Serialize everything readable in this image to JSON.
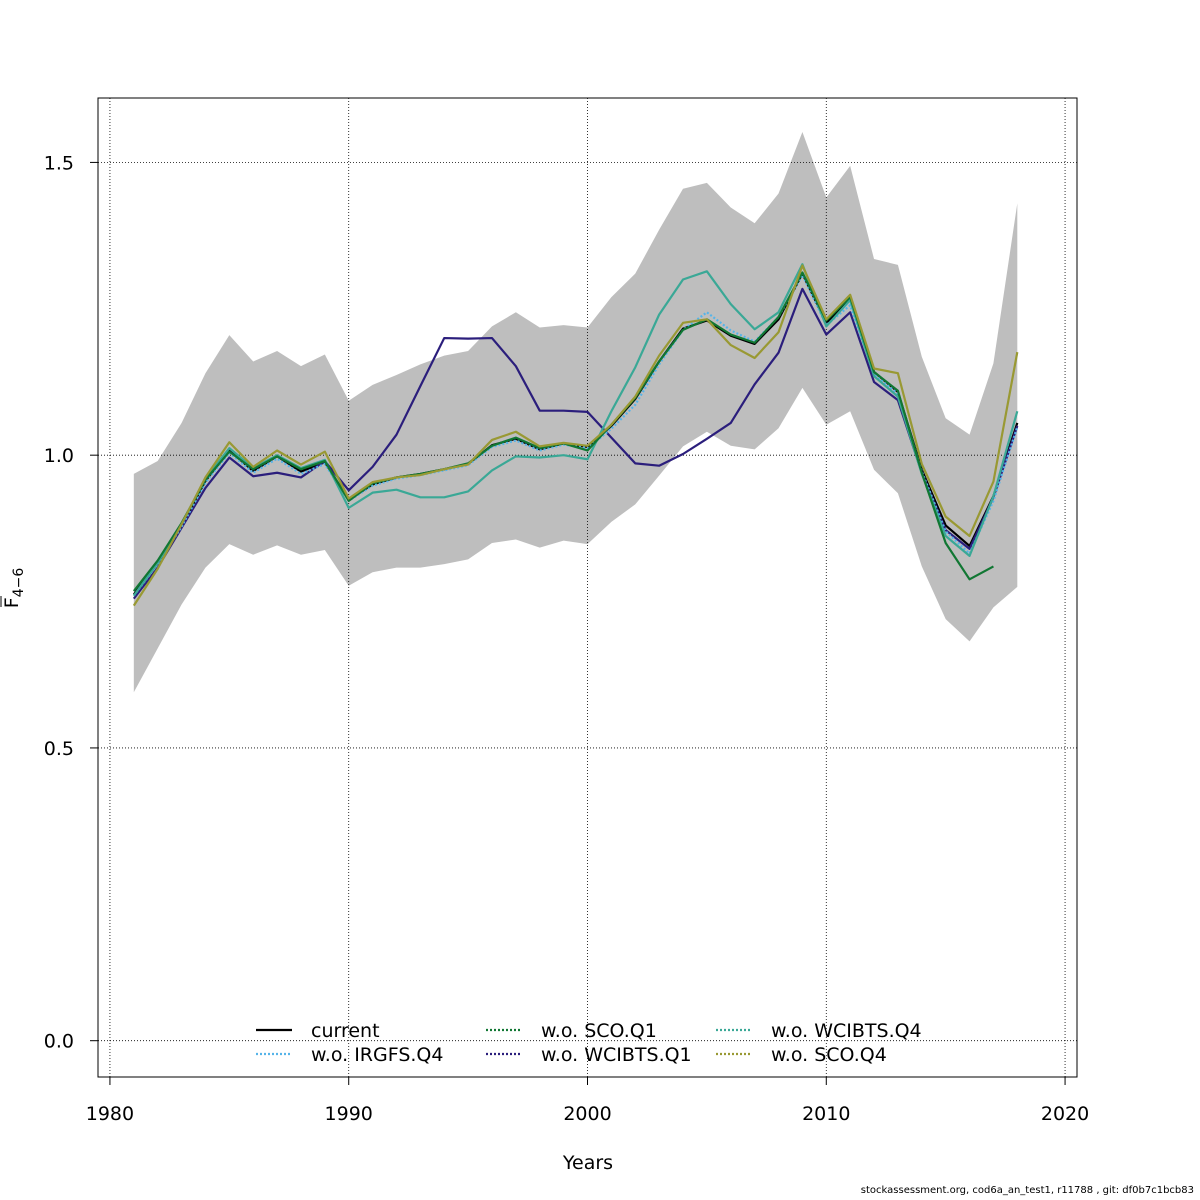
{
  "chart_data": {
    "type": "line",
    "title": "",
    "xlabel": "Years",
    "ylabel": "F̄ 4−6",
    "ylabel_main": "F",
    "ylabel_sub": "4−6",
    "xlim": [
      1979.5,
      2020.5
    ],
    "ylim": [
      -0.062,
      1.61
    ],
    "xticks": [
      1980,
      1990,
      2000,
      2010,
      2020
    ],
    "xtick_labels": [
      "1980",
      "1990",
      "2000",
      "2010",
      "2020"
    ],
    "yticks": [
      0,
      0.5,
      1.0,
      1.5
    ],
    "ytick_labels": [
      "0.0",
      "0.5",
      "1.0",
      "1.5"
    ],
    "grid": true,
    "legend_position": "bottom",
    "band": {
      "color": "#bebebe",
      "x": [
        1981,
        1982,
        1983,
        1984,
        1985,
        1986,
        1987,
        1988,
        1989,
        1990,
        1991,
        1992,
        1993,
        1994,
        1995,
        1996,
        1997,
        1998,
        1999,
        2000,
        2001,
        2002,
        2003,
        2004,
        2005,
        2006,
        2007,
        2008,
        2009,
        2010,
        2011,
        2012,
        2013,
        2014,
        2015,
        2016,
        2017,
        2018
      ],
      "upper": [
        0.968,
        0.99,
        1.055,
        1.14,
        1.205,
        1.16,
        1.178,
        1.152,
        1.172,
        1.093,
        1.12,
        1.137,
        1.155,
        1.17,
        1.178,
        1.22,
        1.244,
        1.218,
        1.222,
        1.218,
        1.27,
        1.31,
        1.385,
        1.455,
        1.465,
        1.423,
        1.396,
        1.447,
        1.552,
        1.44,
        1.494,
        1.335,
        1.325,
        1.168,
        1.063,
        1.035,
        1.157,
        1.43
      ],
      "lower": [
        0.595,
        0.67,
        0.745,
        0.808,
        0.848,
        0.83,
        0.846,
        0.83,
        0.838,
        0.777,
        0.8,
        0.808,
        0.808,
        0.814,
        0.822,
        0.85,
        0.856,
        0.842,
        0.854,
        0.848,
        0.886,
        0.916,
        0.965,
        1.015,
        1.04,
        1.016,
        1.01,
        1.046,
        1.115,
        1.052,
        1.075,
        0.975,
        0.935,
        0.81,
        0.72,
        0.682,
        0.74,
        0.775
      ]
    },
    "series": [
      {
        "name": "current",
        "color": "#000000",
        "dash": "solid",
        "x": [
          1981,
          1982,
          1983,
          1984,
          1985,
          1986,
          1987,
          1988,
          1989,
          1990,
          1991,
          1992,
          1993,
          1994,
          1995,
          1996,
          1997,
          1998,
          1999,
          2000,
          2001,
          2002,
          2003,
          2004,
          2005,
          2006,
          2007,
          2008,
          2009,
          2010,
          2011,
          2012,
          2013,
          2014,
          2015,
          2016,
          2017,
          2018
        ],
        "values": [
          0.762,
          0.816,
          0.88,
          0.956,
          1.008,
          0.973,
          0.998,
          0.972,
          0.988,
          0.924,
          0.95,
          0.962,
          0.968,
          0.976,
          0.985,
          1.017,
          1.028,
          1.01,
          1.02,
          1.014,
          1.05,
          1.096,
          1.16,
          1.216,
          1.23,
          1.204,
          1.19,
          1.232,
          1.31,
          1.226,
          1.266,
          1.142,
          1.108,
          0.975,
          0.88,
          0.845,
          0.93,
          1.055
        ]
      },
      {
        "name": "w.o. WCIBTS.Q1",
        "color": "#2b1e7c",
        "dash": "solid",
        "x": [
          1981,
          1982,
          1983,
          1984,
          1985,
          1986,
          1987,
          1988,
          1989,
          1990,
          1991,
          1992,
          1993,
          1994,
          1995,
          1996,
          1997,
          1998,
          1999,
          2000,
          2001,
          2002,
          2003,
          2004,
          2005,
          2006,
          2007,
          2008,
          2009,
          2010,
          2011,
          2012,
          2013,
          2014,
          2015,
          2016,
          2017,
          2018
        ],
        "values": [
          0.755,
          0.808,
          0.876,
          0.944,
          0.996,
          0.964,
          0.97,
          0.962,
          0.99,
          0.94,
          0.98,
          1.035,
          1.118,
          1.2,
          1.199,
          1.2,
          1.152,
          1.076,
          1.076,
          1.074,
          1.03,
          0.986,
          0.982,
          1.002,
          1.028,
          1.055,
          1.121,
          1.175,
          1.284,
          1.206,
          1.244,
          1.125,
          1.094,
          0.97,
          0.872,
          0.84,
          0.928,
          1.05
        ]
      },
      {
        "name": "w.o. IRGFS.Q4",
        "color": "#56b4e9",
        "dash": "dotted",
        "x": [
          1981,
          1982,
          1983,
          1984,
          1985,
          1986,
          1987,
          1988,
          1989,
          1990,
          1991,
          1992,
          1993,
          1994,
          1995,
          1996,
          1997,
          1998,
          1999,
          2000,
          2001,
          2002,
          2003,
          2004,
          2005,
          2006,
          2007,
          2008,
          2009,
          2010,
          2011,
          2012,
          2013,
          2014,
          2015,
          2016,
          2017,
          2018
        ],
        "values": [
          0.76,
          0.814,
          0.878,
          0.953,
          1.004,
          0.97,
          0.994,
          0.968,
          0.985,
          0.922,
          0.948,
          0.96,
          0.966,
          0.974,
          0.983,
          1.014,
          1.025,
          1.008,
          1.018,
          1.012,
          1.045,
          1.086,
          1.155,
          1.214,
          1.244,
          1.213,
          1.194,
          1.236,
          1.308,
          1.222,
          1.256,
          1.138,
          1.105,
          0.972,
          0.87,
          0.832,
          0.922,
          1.048
        ]
      },
      {
        "name": "w.o. WCIBTS.Q4",
        "color": "#3aa896",
        "dash": "solid",
        "x": [
          1981,
          1982,
          1983,
          1984,
          1985,
          1986,
          1987,
          1988,
          1989,
          1990,
          1991,
          1992,
          1993,
          1994,
          1995,
          1996,
          1997,
          1998,
          1999,
          2000,
          2001,
          2002,
          2003,
          2004,
          2005,
          2006,
          2007,
          2008,
          2009,
          2010,
          2011,
          2012,
          2013,
          2014,
          2015,
          2016,
          2017,
          2018
        ],
        "values": [
          0.76,
          0.816,
          0.882,
          0.96,
          1.012,
          0.978,
          1.0,
          0.978,
          0.992,
          0.91,
          0.936,
          0.941,
          0.928,
          0.928,
          0.938,
          0.974,
          0.998,
          0.996,
          1.0,
          0.993,
          1.075,
          1.15,
          1.24,
          1.3,
          1.314,
          1.258,
          1.215,
          1.244,
          1.326,
          1.22,
          1.265,
          1.135,
          1.1,
          0.968,
          0.862,
          0.828,
          0.93,
          1.075
        ]
      },
      {
        "name": "w.o. SCO.Q1",
        "color": "#117733",
        "dash": "solid",
        "x": [
          1981,
          1982,
          1983,
          1984,
          1985,
          1986,
          1987,
          1988,
          1989,
          1990,
          1991,
          1992,
          1993,
          1994,
          1995,
          1996,
          1997,
          1998,
          1999,
          2000,
          2001,
          2002,
          2003,
          2004,
          2005,
          2006,
          2007,
          2008,
          2009,
          2010,
          2011,
          2012,
          2013,
          2014,
          2015,
          2016,
          2017
        ],
        "values": [
          0.768,
          0.82,
          0.884,
          0.958,
          1.006,
          0.976,
          0.998,
          0.976,
          0.99,
          0.922,
          0.952,
          0.962,
          0.968,
          0.976,
          0.986,
          1.016,
          1.03,
          1.012,
          1.02,
          1.008,
          1.052,
          1.098,
          1.16,
          1.214,
          1.232,
          1.206,
          1.192,
          1.236,
          1.312,
          1.23,
          1.27,
          1.142,
          1.11,
          0.97,
          0.85,
          0.788,
          0.81
        ]
      },
      {
        "name": "w.o. SCO.Q4",
        "color": "#999933",
        "dash": "solid",
        "x": [
          1981,
          1982,
          1983,
          1984,
          1985,
          1986,
          1987,
          1988,
          1989,
          1990,
          1991,
          1992,
          1993,
          1994,
          1995,
          1996,
          1997,
          1998,
          1999,
          2000,
          2001,
          2002,
          2003,
          2004,
          2005,
          2006,
          2007,
          2008,
          2009,
          2010,
          2011,
          2012,
          2013,
          2014,
          2015,
          2016,
          2017,
          2018
        ],
        "values": [
          0.743,
          0.806,
          0.882,
          0.962,
          1.022,
          0.98,
          1.008,
          0.984,
          1.006,
          0.926,
          0.954,
          0.962,
          0.966,
          0.976,
          0.984,
          1.026,
          1.04,
          1.015,
          1.021,
          1.016,
          1.052,
          1.1,
          1.17,
          1.226,
          1.232,
          1.188,
          1.166,
          1.21,
          1.324,
          1.232,
          1.274,
          1.148,
          1.14,
          0.985,
          0.895,
          0.862,
          0.955,
          1.176
        ]
      }
    ]
  },
  "legend": {
    "items": [
      {
        "label": "current",
        "color": "#000000",
        "dash": "solid"
      },
      {
        "label": "w.o. IRGFS.Q4",
        "color": "#56b4e9",
        "dash": "dotted"
      },
      {
        "label": "w.o. SCO.Q1",
        "color": "#117733",
        "dash": "dotted"
      },
      {
        "label": "w.o. WCIBTS.Q1",
        "color": "#2b1e7c",
        "dash": "dotted"
      },
      {
        "label": "w.o. WCIBTS.Q4",
        "color": "#3aa896",
        "dash": "dotted"
      },
      {
        "label": "w.o. SCO.Q4",
        "color": "#999933",
        "dash": "dotted"
      }
    ]
  },
  "footer": {
    "text": "stockassessment.org, cod6a_an_test1, r11788 , git: df0b7c1bcb83"
  }
}
